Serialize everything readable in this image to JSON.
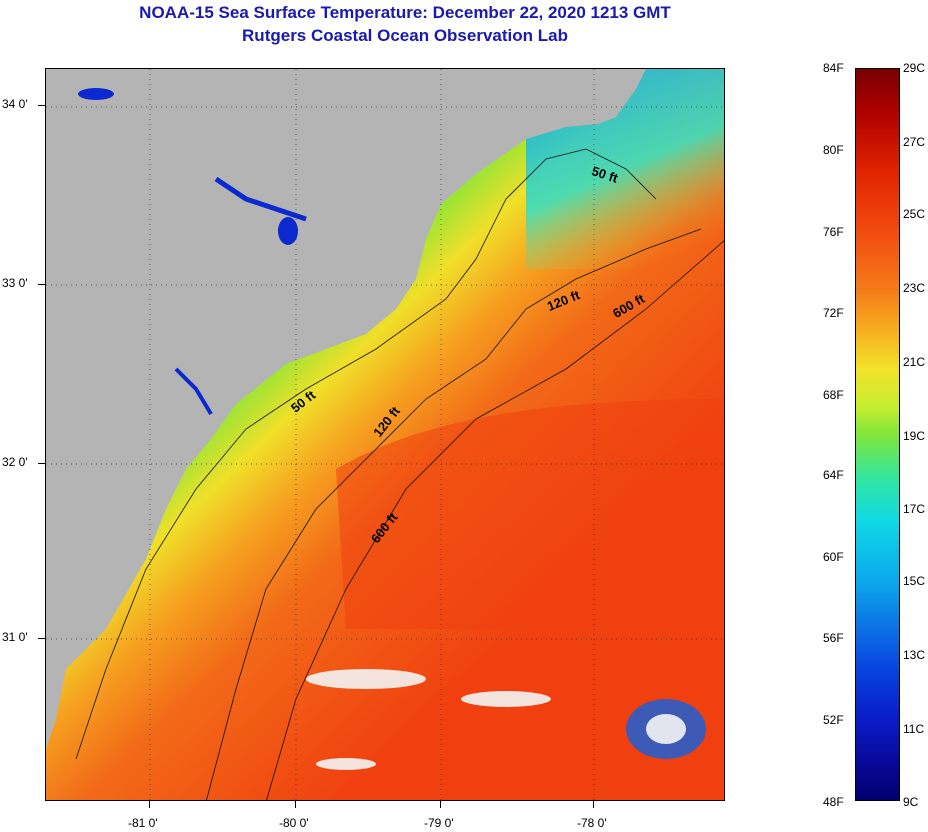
{
  "title": {
    "line1": "NOAA-15 Sea Surface Temperature:  December 22, 2020 1213 GMT",
    "line2": "Rutgers Coastal Ocean Observation Lab"
  },
  "axes": {
    "latitude_labels": [
      "34 0'",
      "33 0'",
      "32 0'",
      "31 0'"
    ],
    "longitude_labels": [
      "-81 0'",
      "-80 0'",
      "-79 0'",
      "-78 0'"
    ]
  },
  "contours": {
    "labels": [
      "50 ft",
      "120 ft",
      "600 ft",
      "50 ft",
      "120 ft",
      "600 ft"
    ]
  },
  "colorbar": {
    "fahrenheit": [
      "84F",
      "80F",
      "76F",
      "72F",
      "68F",
      "64F",
      "60F",
      "56F",
      "52F",
      "48F"
    ],
    "celsius": [
      "29C",
      "27C",
      "25C",
      "23C",
      "21C",
      "19C",
      "17C",
      "15C",
      "13C",
      "11C",
      "9C"
    ]
  },
  "colors": {
    "land": "#b4b4b4",
    "title": "#1a1ab0",
    "warm": "#f24a10",
    "cold": "#0a1cc8"
  }
}
